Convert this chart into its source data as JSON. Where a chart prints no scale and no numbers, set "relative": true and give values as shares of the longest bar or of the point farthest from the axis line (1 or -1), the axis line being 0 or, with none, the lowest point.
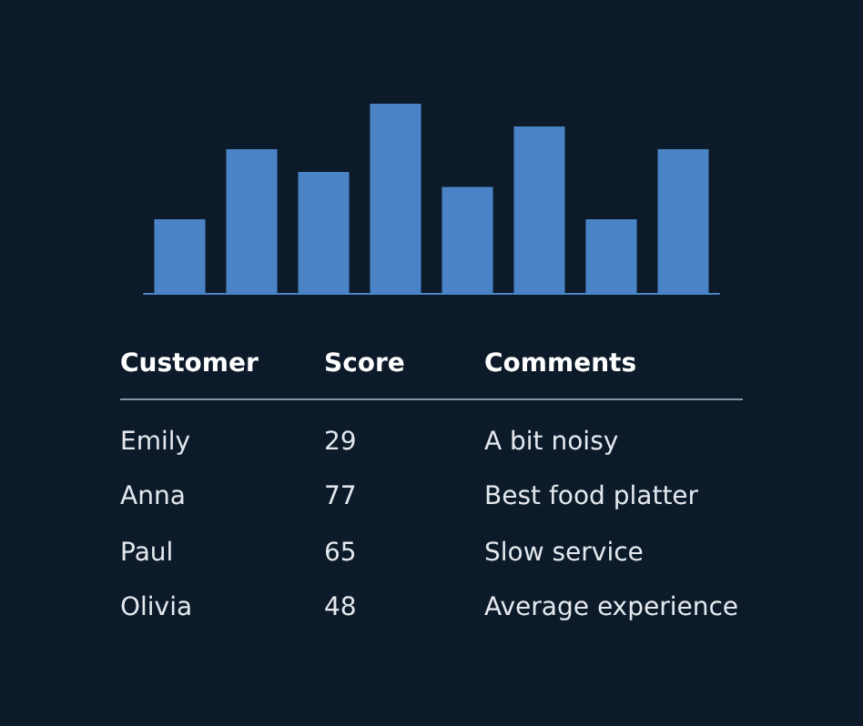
{
  "chart_data": [
    {
      "type": "bar",
      "relative": true,
      "categories": [
        null,
        null,
        null,
        null,
        null,
        null,
        null,
        null
      ],
      "values": [
        0.39,
        0.76,
        0.64,
        1,
        0.56,
        0.88,
        0.39,
        0.76
      ],
      "color": "#4a84c6"
    },
    {
      "type": "other",
      "annotations": [
        "Customer",
        "Score",
        "Comments",
        "Emily",
        "29",
        "A bit noisy",
        "Anna",
        "77",
        "Best food platter",
        "Paul",
        "65",
        "Slow service",
        "Olivia",
        "48",
        "Average experience"
      ]
    }
  ]
}
